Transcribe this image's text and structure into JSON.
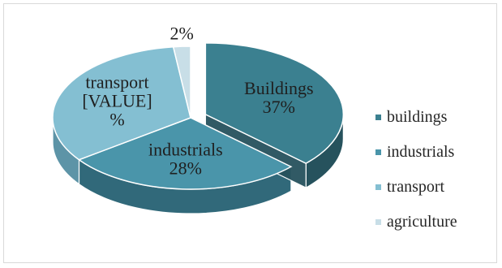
{
  "chart_data": {
    "type": "pie",
    "style": "3d-exploded",
    "slices": [
      {
        "key": "buildings",
        "value": 37,
        "label_lines": [
          "Buildings",
          "37%"
        ],
        "color": "#3b8090",
        "color_side": "#26525d"
      },
      {
        "key": "industrials",
        "value": 28,
        "label_lines": [
          "industrials",
          "28%"
        ],
        "color": "#4a95aa",
        "color_side": "#31697a"
      },
      {
        "key": "transport",
        "value": 33,
        "label_lines": [
          "transport",
          "[VALUE]",
          "%"
        ],
        "color": "#84bfd2",
        "color_side": "#5d94a7"
      },
      {
        "key": "agriculture",
        "value": 2,
        "label_lines": [
          "2%"
        ],
        "color": "#c8dee7",
        "color_side": "#9ab6c2"
      }
    ],
    "legend": {
      "position": "right",
      "entries": [
        "buildings",
        "industrials",
        "transport",
        "agriculture"
      ]
    }
  }
}
